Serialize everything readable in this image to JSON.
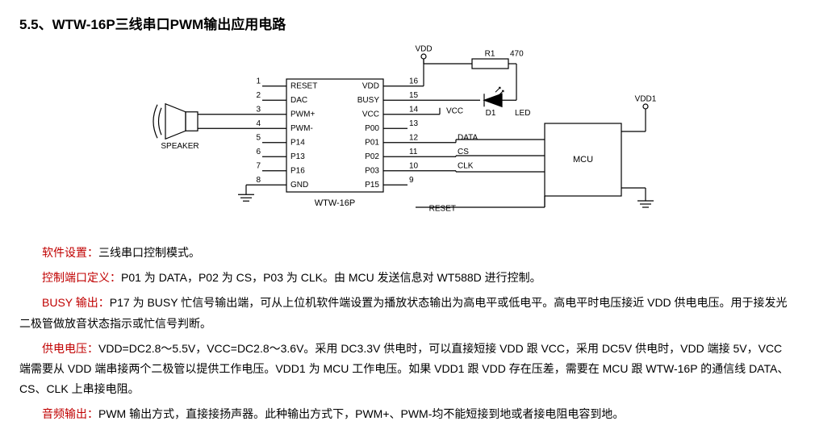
{
  "title": "5.5、WTW-16P三线串口PWM输出应用电路",
  "diagram": {
    "type": "schematic",
    "stroke": "#000000",
    "stroke_width": 1.2,
    "font_family": "Arial, sans-serif",
    "font_size": 11,
    "chip": {
      "label": "WTW-16P",
      "left_pins": [
        {
          "num": "1",
          "name": "RESET"
        },
        {
          "num": "2",
          "name": "DAC"
        },
        {
          "num": "3",
          "name": "PWM+"
        },
        {
          "num": "4",
          "name": "PWM-"
        },
        {
          "num": "5",
          "name": "P14"
        },
        {
          "num": "6",
          "name": "P13"
        },
        {
          "num": "7",
          "name": "P16"
        },
        {
          "num": "8",
          "name": "GND"
        }
      ],
      "right_pins": [
        {
          "num": "16",
          "name": "VDD"
        },
        {
          "num": "15",
          "name": "BUSY"
        },
        {
          "num": "14",
          "name": "VCC"
        },
        {
          "num": "13",
          "name": "P00"
        },
        {
          "num": "12",
          "name": "P01"
        },
        {
          "num": "11",
          "name": "P02"
        },
        {
          "num": "10",
          "name": "P03"
        },
        {
          "num": "9",
          "name": "P15"
        }
      ]
    },
    "mcu_label": "MCU",
    "nets": {
      "vdd": "VDD",
      "vcc": "VCC",
      "vdd1": "VDD1",
      "data": "DATA",
      "cs": "CS",
      "clk": "CLK",
      "reset": "RESET"
    },
    "components": {
      "r1": {
        "ref": "R1",
        "value": "470"
      },
      "d1": {
        "ref": "D1",
        "note": "LED"
      },
      "speaker": "SPEAKER"
    }
  },
  "paragraphs": [
    {
      "kw": "软件设置：",
      "text": "三线串口控制模式。"
    },
    {
      "kw": "控制端口定义：",
      "text": "P01 为 DATA，P02 为 CS，P03 为 CLK。由 MCU 发送信息对 WT588D 进行控制。"
    },
    {
      "kw": "BUSY 输出：",
      "text": "P17 为 BUSY 忙信号输出端，可从上位机软件端设置为播放状态输出为高电平或低电平。高电平时电压接近 VDD 供电电压。用于接发光二极管做放音状态指示或忙信号判断。"
    },
    {
      "kw": "供电电压：",
      "text": "VDD=DC2.8～5.5V，VCC=DC2.8～3.6V。采用 DC3.3V 供电时，可以直接短接 VDD 跟 VCC，采用 DC5V 供电时，VDD 端接 5V，VCC 端需要从 VDD 端串接两个二极管以提供工作电压。VDD1 为 MCU 工作电压。如果 VDD1 跟 VDD 存在压差，需要在 MCU 跟 WTW-16P 的通信线 DATA、CS、CLK 上串接电阻。"
    },
    {
      "kw": "音频输出：",
      "text": "PWM 输出方式，直接接扬声器。此种输出方式下，PWM+、PWM-均不能短接到地或者接电阻电容到地。"
    }
  ]
}
